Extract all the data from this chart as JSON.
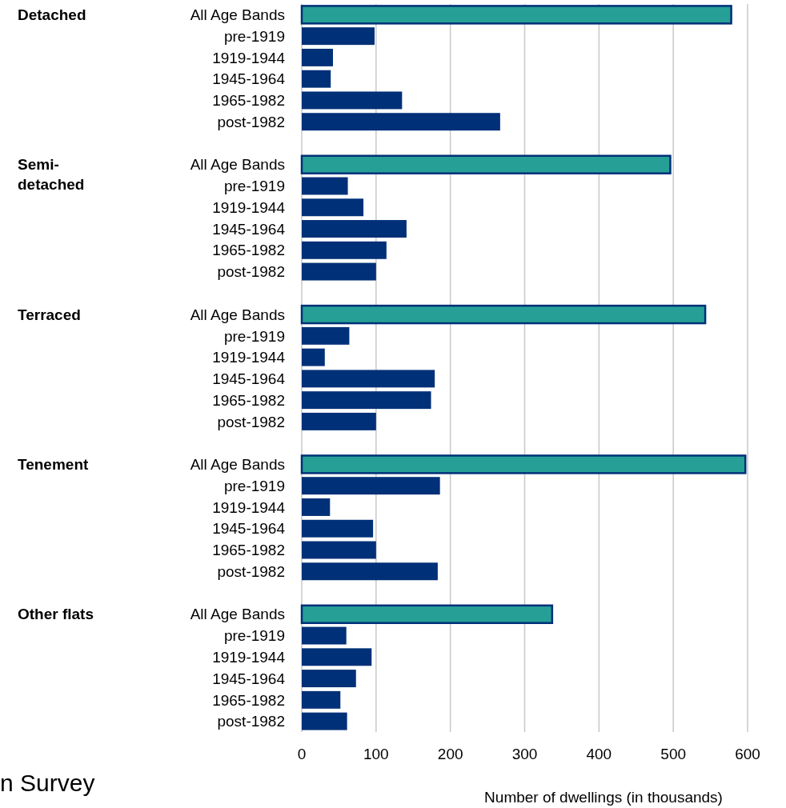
{
  "chart_data": {
    "type": "bar",
    "orientation": "horizontal",
    "xlabel": "Number of dwellings (in thousands)",
    "categories": [
      "All Age Bands",
      "pre-1919",
      "1919-1944",
      "1945-1964",
      "1965-1982",
      "post-1982",
      null,
      "All Age Bands",
      "pre-1919",
      "1919-1944",
      "1945-1964",
      "1965-1982",
      "post-1982",
      null,
      "All Age Bands",
      "pre-1919",
      "1919-1944",
      "1945-1964",
      "1965-1982",
      "post-1982",
      null,
      "All Age Bands",
      "pre-1919",
      "1919-1944",
      "1945-1964",
      "1965-1982",
      "post-1982",
      null,
      "All Age Bands",
      "pre-1919",
      "1919-1944",
      "1945-1964",
      "1965-1982",
      "post-1982"
    ],
    "values": [
      578,
      98,
      42,
      39,
      135,
      267,
      null,
      496,
      62,
      83,
      141,
      114,
      100,
      null,
      543,
      64,
      31,
      179,
      174,
      100,
      null,
      597,
      186,
      38,
      96,
      100,
      183,
      null,
      337,
      60,
      94,
      73,
      52,
      61
    ],
    "colors": [
      "#26a096",
      "#003078",
      "#003078",
      "#003078",
      "#003078",
      "#003078",
      null,
      "#26a096",
      "#003078",
      "#003078",
      "#003078",
      "#003078",
      "#003078",
      null,
      "#26a096",
      "#003078",
      "#003078",
      "#003078",
      "#003078",
      "#003078",
      null,
      "#26a096",
      "#003078",
      "#003078",
      "#003078",
      "#003078",
      "#003078",
      null,
      "#26a096",
      "#003078",
      "#003078",
      "#003078",
      "#003078",
      "#003078"
    ],
    "annotations": [
      "Detached",
      "Semi-detached",
      "Terraced",
      "Tenement",
      "Other flats",
      "n Survey"
    ],
    "xlim": [
      0,
      600
    ],
    "xticks": [
      0,
      100,
      200,
      300,
      400,
      500,
      600
    ],
    "grid": "x"
  }
}
